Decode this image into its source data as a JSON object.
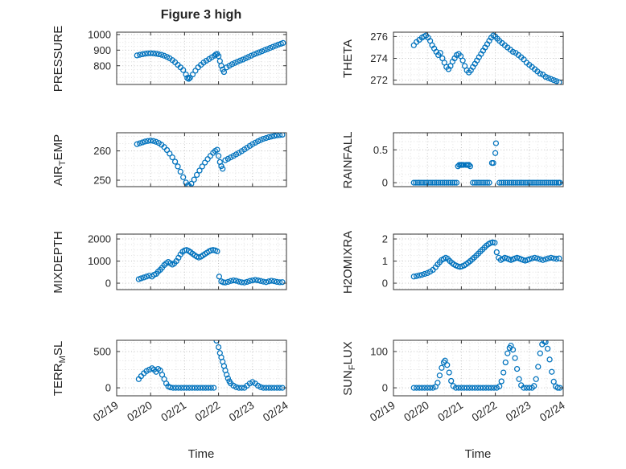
{
  "figure": {
    "title": "Figure 3 high",
    "xlabel": "Time",
    "x_tick_labels": [
      "02/19",
      "02/20",
      "02/21",
      "02/22",
      "02/23",
      "02/24"
    ],
    "xticks": [
      0,
      1,
      2,
      3,
      4,
      5
    ],
    "xlim": [
      0,
      5
    ],
    "x_minor_step": 0.25,
    "marker_color": "#0072BD",
    "axis_color": "#262626"
  },
  "chart_data": [
    {
      "type": "scatter",
      "name": "PRESSURE",
      "ylabel": {
        "pre": "PRESSURE",
        "sub": "",
        "post": ""
      },
      "panel": {
        "row": 0,
        "col": 0
      },
      "ylim": [
        680,
        1015
      ],
      "yticks": [
        800,
        900,
        1000
      ],
      "ytick_labels": [
        "800",
        "900",
        "1000"
      ],
      "y_minor_step": 25,
      "x": [
        0.6,
        0.68,
        0.76,
        0.84,
        0.92,
        1.0,
        1.08,
        1.16,
        1.24,
        1.32,
        1.4,
        1.48,
        1.56,
        1.64,
        1.72,
        1.8,
        1.88,
        1.96,
        2.04,
        2.08,
        2.12,
        2.16,
        2.24,
        2.32,
        2.4,
        2.48,
        2.56,
        2.64,
        2.72,
        2.8,
        2.88,
        2.92,
        2.96,
        3.0,
        3.04,
        3.08,
        3.12,
        3.16,
        3.24,
        3.32,
        3.4,
        3.48,
        3.56,
        3.64,
        3.72,
        3.8,
        3.88,
        3.96,
        4.04,
        4.12,
        4.2,
        4.28,
        4.36,
        4.44,
        4.52,
        4.6,
        4.68,
        4.76,
        4.84,
        4.9
      ],
      "y": [
        866,
        870,
        874,
        877,
        879,
        880,
        879,
        877,
        874,
        870,
        864,
        857,
        848,
        836,
        822,
        806,
        790,
        772,
        744,
        722,
        716,
        724,
        744,
        768,
        790,
        806,
        820,
        832,
        843,
        854,
        864,
        872,
        876,
        862,
        830,
        800,
        776,
        760,
        790,
        800,
        810,
        818,
        826,
        833,
        840,
        848,
        856,
        864,
        872,
        879,
        886,
        893,
        900,
        907,
        914,
        921,
        928,
        935,
        941,
        946
      ]
    },
    {
      "type": "scatter",
      "name": "AIR_TEMP",
      "ylabel": {
        "pre": "AIR",
        "sub": "T",
        "post": "EMP"
      },
      "panel": {
        "row": 1,
        "col": 0
      },
      "ylim": [
        247.8,
        266.2
      ],
      "yticks": [
        250,
        260
      ],
      "ytick_labels": [
        "250",
        "260"
      ],
      "y_minor_step": 2.5,
      "x": [
        0.6,
        0.68,
        0.76,
        0.84,
        0.92,
        1.0,
        1.08,
        1.16,
        1.24,
        1.32,
        1.4,
        1.48,
        1.56,
        1.64,
        1.72,
        1.8,
        1.88,
        1.96,
        2.04,
        2.1,
        2.14,
        2.2,
        2.28,
        2.36,
        2.44,
        2.52,
        2.6,
        2.68,
        2.76,
        2.84,
        2.9,
        2.96,
        3.0,
        3.04,
        3.08,
        3.12,
        3.2,
        3.28,
        3.36,
        3.44,
        3.52,
        3.6,
        3.68,
        3.76,
        3.84,
        3.92,
        4.0,
        4.08,
        4.16,
        4.24,
        4.32,
        4.4,
        4.48,
        4.56,
        4.64,
        4.72,
        4.8,
        4.88
      ],
      "y": [
        262.3,
        262.6,
        262.9,
        263.2,
        263.4,
        263.5,
        263.4,
        263.1,
        262.7,
        262.1,
        261.3,
        260.3,
        259.1,
        257.8,
        256.3,
        254.7,
        252.9,
        251.0,
        249.2,
        248.3,
        248.0,
        248.8,
        250.2,
        251.8,
        253.3,
        254.7,
        256.0,
        257.2,
        258.3,
        259.3,
        260.0,
        260.4,
        258.3,
        256.2,
        254.8,
        253.9,
        256.8,
        257.3,
        257.8,
        258.3,
        258.8,
        259.3,
        259.9,
        260.5,
        261.1,
        261.7,
        262.3,
        262.8,
        263.3,
        263.7,
        264.1,
        264.4,
        264.7,
        264.9,
        265.1,
        265.3,
        265.4,
        265.5
      ]
    },
    {
      "type": "scatter",
      "name": "MIXDEPTH",
      "ylabel": {
        "pre": "MIXDEPTH",
        "sub": "",
        "post": ""
      },
      "panel": {
        "row": 2,
        "col": 0
      },
      "ylim": [
        -290,
        2220
      ],
      "yticks": [
        0,
        1000,
        2000
      ],
      "ytick_labels": [
        "0",
        "1000",
        "2000"
      ],
      "y_minor_step": 250,
      "x": [
        0.65,
        0.72,
        0.8,
        0.88,
        0.96,
        1.04,
        1.1,
        1.16,
        1.22,
        1.28,
        1.34,
        1.4,
        1.46,
        1.52,
        1.58,
        1.64,
        1.7,
        1.76,
        1.82,
        1.88,
        1.94,
        2.0,
        2.06,
        2.12,
        2.18,
        2.24,
        2.3,
        2.36,
        2.42,
        2.48,
        2.54,
        2.6,
        2.66,
        2.72,
        2.78,
        2.84,
        2.9,
        2.96,
        3.02,
        3.08,
        3.14,
        3.2,
        3.28,
        3.36,
        3.44,
        3.52,
        3.6,
        3.68,
        3.76,
        3.84,
        3.92,
        4.0,
        4.08,
        4.16,
        4.24,
        4.32,
        4.4,
        4.48,
        4.56,
        4.64,
        4.72,
        4.8,
        4.88
      ],
      "y": [
        180,
        220,
        260,
        300,
        340,
        300,
        380,
        420,
        520,
        600,
        700,
        820,
        900,
        960,
        900,
        840,
        900,
        1000,
        1150,
        1300,
        1420,
        1480,
        1500,
        1460,
        1400,
        1330,
        1260,
        1200,
        1160,
        1200,
        1260,
        1320,
        1380,
        1440,
        1480,
        1500,
        1480,
        1440,
        300,
        80,
        40,
        30,
        60,
        100,
        130,
        110,
        70,
        40,
        30,
        60,
        100,
        130,
        150,
        130,
        100,
        70,
        50,
        80,
        110,
        90,
        60,
        40,
        50
      ]
    },
    {
      "type": "scatter",
      "name": "TERR_MSL",
      "ylabel": {
        "pre": "TERR",
        "sub": "M",
        "post": "SL"
      },
      "panel": {
        "row": 3,
        "col": 0
      },
      "ylim": [
        -110,
        655
      ],
      "yticks": [
        0,
        500
      ],
      "ytick_labels": [
        "0",
        "500"
      ],
      "y_minor_step": 125,
      "x": [
        0.65,
        0.72,
        0.8,
        0.88,
        0.96,
        1.04,
        1.1,
        1.16,
        1.22,
        1.28,
        1.34,
        1.4,
        1.46,
        1.52,
        1.58,
        1.66,
        1.74,
        1.82,
        1.9,
        1.98,
        2.06,
        2.14,
        2.22,
        2.3,
        2.38,
        2.46,
        2.54,
        2.62,
        2.7,
        2.78,
        2.86,
        2.94,
        3.0,
        3.04,
        3.08,
        3.12,
        3.16,
        3.2,
        3.24,
        3.28,
        3.32,
        3.36,
        3.44,
        3.52,
        3.6,
        3.68,
        3.76,
        3.84,
        3.92,
        4.0,
        4.08,
        4.16,
        4.24,
        4.32,
        4.4,
        4.48,
        4.56,
        4.64,
        4.72,
        4.8,
        4.88
      ],
      "y": [
        120,
        160,
        200,
        230,
        250,
        270,
        250,
        220,
        260,
        240,
        180,
        120,
        60,
        20,
        5,
        0,
        0,
        0,
        0,
        0,
        0,
        0,
        0,
        0,
        0,
        0,
        0,
        0,
        0,
        0,
        0,
        650,
        560,
        480,
        420,
        360,
        300,
        240,
        180,
        130,
        90,
        60,
        30,
        10,
        0,
        0,
        0,
        30,
        60,
        80,
        60,
        30,
        10,
        0,
        0,
        0,
        0,
        0,
        0,
        0,
        0
      ]
    },
    {
      "type": "scatter",
      "name": "THETA",
      "ylabel": {
        "pre": "THETA",
        "sub": "",
        "post": ""
      },
      "panel": {
        "row": 0,
        "col": 1
      },
      "ylim": [
        271.6,
        276.4
      ],
      "yticks": [
        272,
        274,
        276
      ],
      "ytick_labels": [
        "272",
        "274",
        "276"
      ],
      "y_minor_step": 0.5,
      "x": [
        0.6,
        0.68,
        0.76,
        0.84,
        0.9,
        0.96,
        1.02,
        1.08,
        1.14,
        1.2,
        1.26,
        1.32,
        1.38,
        1.44,
        1.5,
        1.56,
        1.62,
        1.68,
        1.74,
        1.8,
        1.86,
        1.92,
        1.98,
        2.04,
        2.1,
        2.16,
        2.22,
        2.28,
        2.34,
        2.4,
        2.46,
        2.52,
        2.58,
        2.64,
        2.7,
        2.76,
        2.82,
        2.88,
        2.94,
        3.0,
        3.06,
        3.12,
        3.2,
        3.28,
        3.36,
        3.44,
        3.52,
        3.6,
        3.68,
        3.76,
        3.84,
        3.92,
        4.0,
        4.08,
        4.16,
        4.24,
        4.32,
        4.4,
        4.48,
        4.56,
        4.64,
        4.72,
        4.8,
        4.88
      ],
      "y": [
        275.2,
        275.5,
        275.7,
        275.9,
        276.0,
        276.1,
        275.9,
        275.6,
        275.2,
        274.9,
        274.6,
        274.3,
        274.5,
        274.0,
        273.6,
        273.2,
        273.0,
        273.3,
        273.7,
        274.0,
        274.3,
        274.4,
        274.2,
        273.8,
        273.3,
        272.9,
        272.7,
        272.9,
        273.2,
        273.5,
        273.8,
        274.1,
        274.4,
        274.7,
        275.0,
        275.3,
        275.6,
        275.9,
        276.1,
        276.0,
        275.8,
        275.6,
        275.4,
        275.2,
        275.0,
        274.8,
        274.6,
        274.5,
        274.3,
        274.1,
        273.9,
        273.6,
        273.4,
        273.2,
        273.0,
        272.8,
        272.6,
        272.5,
        272.3,
        272.2,
        272.1,
        272.0,
        271.9,
        271.8
      ]
    },
    {
      "type": "scatter",
      "name": "RAINFALL",
      "ylabel": {
        "pre": "RAINFALL",
        "sub": "",
        "post": ""
      },
      "panel": {
        "row": 1,
        "col": 1
      },
      "ylim": [
        -0.06,
        0.76
      ],
      "yticks": [
        0,
        0.5
      ],
      "ytick_labels": [
        "0",
        "0.5"
      ],
      "y_minor_step": 0.125,
      "x": [
        0.6,
        0.66,
        0.72,
        0.78,
        0.84,
        0.9,
        0.96,
        1.02,
        1.08,
        1.14,
        1.2,
        1.26,
        1.32,
        1.38,
        1.44,
        1.5,
        1.56,
        1.62,
        1.68,
        1.74,
        1.8,
        1.86,
        2.34,
        2.4,
        2.46,
        2.52,
        2.58,
        2.64,
        2.7,
        2.76,
        2.82,
        3.12,
        3.18,
        3.24,
        3.3,
        3.36,
        3.42,
        3.48,
        3.54,
        3.6,
        3.66,
        3.72,
        3.78,
        3.84,
        3.9,
        3.96,
        4.02,
        4.08,
        4.14,
        4.2,
        4.26,
        4.32,
        4.38,
        4.44,
        4.5,
        4.56,
        4.62,
        4.68,
        4.74,
        4.8,
        4.86,
        4.9,
        1.9,
        1.94,
        1.98,
        2.02,
        2.06,
        2.14,
        2.18,
        2.22,
        2.26,
        2.9,
        2.94,
        3.0,
        3.02
      ],
      "y": [
        0,
        0,
        0,
        0,
        0,
        0,
        0,
        0,
        0,
        0,
        0,
        0,
        0,
        0,
        0,
        0,
        0,
        0,
        0,
        0,
        0,
        0,
        0,
        0,
        0,
        0,
        0,
        0,
        0,
        0,
        0,
        0,
        0,
        0,
        0,
        0,
        0,
        0,
        0,
        0,
        0,
        0,
        0,
        0,
        0,
        0,
        0,
        0,
        0,
        0,
        0,
        0,
        0,
        0,
        0,
        0,
        0,
        0,
        0,
        0,
        0,
        0,
        0.25,
        0.27,
        0.27,
        0.27,
        0.27,
        0.27,
        0.27,
        0.27,
        0.25,
        0.3,
        0.3,
        0.45,
        0.6
      ]
    },
    {
      "type": "scatter",
      "name": "H2OMIXRA",
      "ylabel": {
        "pre": "H2OMIXRA",
        "sub": "",
        "post": ""
      },
      "panel": {
        "row": 2,
        "col": 1
      },
      "ylim": [
        -0.29,
        2.22
      ],
      "yticks": [
        0,
        1,
        2
      ],
      "ytick_labels": [
        "0",
        "1",
        "2"
      ],
      "y_minor_step": 0.25,
      "x": [
        0.6,
        0.68,
        0.76,
        0.84,
        0.92,
        1.0,
        1.08,
        1.16,
        1.24,
        1.3,
        1.36,
        1.42,
        1.48,
        1.54,
        1.6,
        1.66,
        1.72,
        1.78,
        1.84,
        1.9,
        1.96,
        2.02,
        2.08,
        2.14,
        2.2,
        2.26,
        2.32,
        2.38,
        2.44,
        2.5,
        2.56,
        2.62,
        2.68,
        2.74,
        2.8,
        2.86,
        2.92,
        2.98,
        3.04,
        3.1,
        3.16,
        3.22,
        3.28,
        3.34,
        3.4,
        3.46,
        3.52,
        3.58,
        3.64,
        3.7,
        3.76,
        3.82,
        3.88,
        3.94,
        4.0,
        4.08,
        4.16,
        4.24,
        4.32,
        4.4,
        4.48,
        4.56,
        4.64,
        4.72,
        4.8,
        4.88
      ],
      "y": [
        0.3,
        0.32,
        0.35,
        0.38,
        0.42,
        0.46,
        0.52,
        0.6,
        0.72,
        0.85,
        0.95,
        1.05,
        1.1,
        1.15,
        1.1,
        1.0,
        0.92,
        0.85,
        0.8,
        0.76,
        0.74,
        0.76,
        0.8,
        0.86,
        0.93,
        1.0,
        1.08,
        1.16,
        1.25,
        1.34,
        1.43,
        1.52,
        1.61,
        1.7,
        1.77,
        1.82,
        1.85,
        1.83,
        1.4,
        1.15,
        1.05,
        1.1,
        1.15,
        1.12,
        1.08,
        1.05,
        1.08,
        1.12,
        1.15,
        1.12,
        1.08,
        1.05,
        1.02,
        1.05,
        1.08,
        1.12,
        1.15,
        1.12,
        1.08,
        1.05,
        1.08,
        1.12,
        1.15,
        1.12,
        1.1,
        1.12
      ]
    },
    {
      "type": "scatter",
      "name": "SUN_FLUX",
      "ylabel": {
        "pre": "SUN",
        "sub": "F",
        "post": "LUX"
      },
      "panel": {
        "row": 3,
        "col": 1
      },
      "ylim": [
        -22,
        131
      ],
      "yticks": [
        0,
        100
      ],
      "ytick_labels": [
        "0",
        "100"
      ],
      "y_minor_step": 25,
      "x": [
        0.6,
        0.68,
        0.76,
        0.84,
        0.92,
        1.0,
        1.08,
        1.16,
        1.24,
        1.3,
        1.36,
        1.42,
        1.48,
        1.52,
        1.58,
        1.64,
        1.7,
        1.76,
        1.84,
        1.92,
        2.0,
        2.08,
        2.16,
        2.24,
        2.32,
        2.4,
        2.48,
        2.56,
        2.64,
        2.72,
        2.8,
        2.88,
        2.96,
        3.04,
        3.12,
        3.18,
        3.24,
        3.3,
        3.36,
        3.42,
        3.46,
        3.52,
        3.58,
        3.64,
        3.7,
        3.76,
        3.84,
        3.92,
        4.0,
        4.08,
        4.14,
        4.2,
        4.26,
        4.32,
        4.38,
        4.44,
        4.48,
        4.54,
        4.6,
        4.66,
        4.72,
        4.78,
        4.84,
        4.9
      ],
      "y": [
        0,
        0,
        0,
        0,
        0,
        0,
        0,
        0,
        3,
        14,
        34,
        55,
        70,
        75,
        63,
        42,
        19,
        5,
        0,
        0,
        0,
        0,
        0,
        0,
        0,
        0,
        0,
        0,
        0,
        0,
        0,
        0,
        0,
        0,
        4,
        18,
        42,
        70,
        95,
        110,
        116,
        105,
        82,
        52,
        24,
        7,
        0,
        0,
        0,
        0,
        5,
        24,
        58,
        95,
        120,
        128,
        126,
        108,
        78,
        44,
        17,
        4,
        0,
        0
      ]
    }
  ]
}
